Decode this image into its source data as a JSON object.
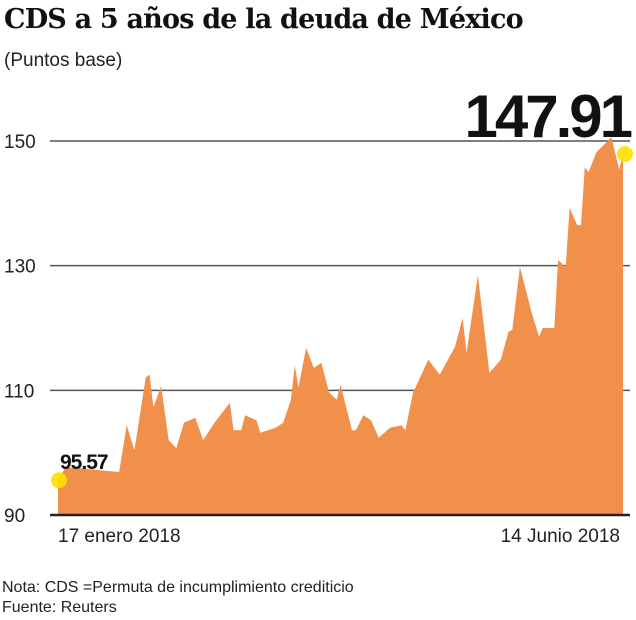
{
  "chart_data": {
    "type": "area",
    "title": "CDS a 5 años de la deuda de México",
    "subtitle": "(Puntos base)",
    "xlabel": "",
    "ylabel": "",
    "ylim": [
      90,
      150
    ],
    "yticks": [
      "150",
      "130",
      "110",
      "90"
    ],
    "ytick_values": [
      150,
      130,
      110,
      90
    ],
    "x_start_label": "17 enero 2018",
    "x_end_label": "14 Junio 2018",
    "grid": true,
    "color": "#F0904A",
    "marker_color": "#FFE000",
    "start_value_label": "95.57",
    "end_value_label": "147.91",
    "series": [
      {
        "x": [
          "2018-01-17",
          "2018-01-19",
          "2018-02-02",
          "2018-02-04",
          "2018-02-06",
          "2018-02-09",
          "2018-02-10",
          "2018-02-11",
          "2018-02-13",
          "2018-02-15",
          "2018-02-17",
          "2018-02-19",
          "2018-02-22",
          "2018-02-24",
          "2018-02-27",
          "2018-03-03",
          "2018-03-04",
          "2018-03-06",
          "2018-03-07",
          "2018-03-10",
          "2018-03-11",
          "2018-03-15",
          "2018-03-17",
          "2018-03-19",
          "2018-03-20",
          "2018-03-21",
          "2018-03-23",
          "2018-03-25",
          "2018-03-27",
          "2018-03-29",
          "2018-03-31",
          "2018-04-01",
          "2018-04-04",
          "2018-04-05",
          "2018-04-07",
          "2018-04-09",
          "2018-04-11",
          "2018-04-14",
          "2018-04-17",
          "2018-04-18",
          "2018-04-20",
          "2018-04-24",
          "2018-04-27",
          "2018-05-01",
          "2018-05-03",
          "2018-05-04",
          "2018-05-07",
          "2018-05-10",
          "2018-05-13",
          "2018-05-15",
          "2018-05-16",
          "2018-05-18",
          "2018-05-20",
          "2018-05-21",
          "2018-05-23",
          "2018-05-24",
          "2018-05-27",
          "2018-05-28",
          "2018-05-30",
          "2018-05-31",
          "2018-06-02",
          "2018-06-03",
          "2018-06-04",
          "2018-06-05",
          "2018-06-07",
          "2018-06-09",
          "2018-06-11",
          "2018-06-13",
          "2018-06-14"
        ],
        "values": [
          95.57,
          97.7,
          96.9,
          104.4,
          100.4,
          112.1,
          112.5,
          107.3,
          110.7,
          102,
          100.7,
          104.8,
          105.6,
          102,
          104.8,
          108,
          103.6,
          103.6,
          106,
          105.2,
          103.2,
          104,
          104.8,
          108.5,
          114,
          110.5,
          116.8,
          113.6,
          114.4,
          109.7,
          108.5,
          110.9,
          103.6,
          103.6,
          106,
          105.2,
          102.4,
          104,
          104.4,
          103.6,
          109.6,
          114.9,
          112.5,
          117,
          121.6,
          116,
          128.5,
          112.8,
          114.9,
          119.4,
          119.7,
          129.8,
          125,
          122.6,
          118.6,
          120,
          120,
          130.9,
          129.8,
          139.3,
          136.5,
          136.5,
          145.8,
          145,
          148.2,
          149.4,
          150.6,
          145.4,
          147.91
        ]
      }
    ]
  },
  "notes": {
    "nota": "Nota: CDS =Permuta de incumplimiento crediticio",
    "fuente": "Fuente: Reuters"
  }
}
